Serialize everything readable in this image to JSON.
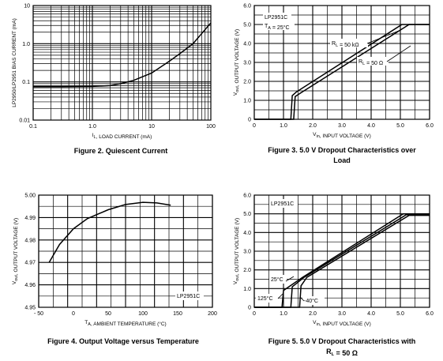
{
  "chart_data": [
    {
      "type": "line",
      "figure": "Figure 2",
      "caption": [
        "Figure 2. Quiescent Current"
      ],
      "xlabel": "I_L, LOAD CURRENT (mA)",
      "ylabel": "LP2950/LP2951 BIAS CURRENT (mA)",
      "xscale": "log",
      "yscale": "log",
      "xlim": [
        0.1,
        100
      ],
      "ylim": [
        0.01,
        10
      ],
      "xticks": [
        "0.1",
        "1.0",
        "10",
        "100"
      ],
      "yticks": [
        "10",
        "1.0",
        "0.1",
        "0.01"
      ],
      "grid": true,
      "series": [
        {
          "x": [
            0.1,
            0.3,
            1,
            2,
            3,
            5,
            10,
            20,
            30,
            50,
            100
          ],
          "y": [
            0.075,
            0.075,
            0.076,
            0.08,
            0.09,
            0.11,
            0.17,
            0.35,
            0.55,
            1.0,
            3.5
          ]
        }
      ]
    },
    {
      "type": "line",
      "figure": "Figure 3",
      "caption": [
        "Figure 3. 5.0 V Dropout Characteristics over",
        "Load"
      ],
      "xlabel": "V_in, INPUT VOLTAGE (V)",
      "ylabel": "V_out, OUTPUT VOLTAGE (V)",
      "xlim": [
        0,
        6.0
      ],
      "ylim": [
        0,
        6.0
      ],
      "xticks": [
        "0",
        "1.0",
        "2.0",
        "3.0",
        "4.0",
        "5.0",
        "6.0"
      ],
      "yticks": [
        "6.0",
        "5.0",
        "4.0",
        "3.0",
        "2.0",
        "1.0",
        "0"
      ],
      "grid": true,
      "annotations": [
        "LP2951C",
        "T_A = 25°C",
        "R_L = 50 kΩ",
        "R_L = 50 Ω"
      ],
      "series": [
        {
          "name": "R_L = 50 kΩ",
          "x": [
            0,
            1.25,
            1.3,
            1.45,
            5.05,
            6.0
          ],
          "y": [
            0,
            0,
            1.25,
            1.45,
            5.0,
            5.0
          ]
        },
        {
          "name": "R_L = 50 Ω",
          "x": [
            0,
            1.35,
            1.4,
            1.6,
            5.3,
            6.0
          ],
          "y": [
            0,
            0,
            1.2,
            1.4,
            5.0,
            5.0
          ]
        }
      ]
    },
    {
      "type": "line",
      "figure": "Figure 4",
      "caption": [
        "Figure 4. Output Voltage versus Temperature"
      ],
      "xlabel": "T_A, AMBIENT TEMPERATURE (°C)",
      "ylabel": "V_out, OUTPUT VOLTAGE (V)",
      "xlim": [
        -50,
        200
      ],
      "ylim": [
        4.95,
        5.0
      ],
      "xticks": [
        "- 50",
        "0",
        "50",
        "100",
        "150",
        "200"
      ],
      "yticks": [
        "5.00",
        "4.99",
        "4.98",
        "4.97",
        "4.96",
        "4.95"
      ],
      "grid": true,
      "annotations": [
        "LP2951C"
      ],
      "series": [
        {
          "x": [
            -35,
            -20,
            0,
            20,
            50,
            75,
            100,
            120,
            140
          ],
          "y": [
            4.97,
            4.978,
            4.985,
            4.9895,
            4.9935,
            4.9958,
            4.9968,
            4.9965,
            4.9955
          ]
        }
      ]
    },
    {
      "type": "line",
      "figure": "Figure 5",
      "caption": [
        "Figure 5. 5.0 V Dropout Characteristics with",
        "R_L = 50 Ω"
      ],
      "xlabel": "V_in, INPUT VOLTAGE (V)",
      "ylabel": "V_out, OUTPUT VOLTAGE (V)",
      "xlim": [
        0,
        6.0
      ],
      "ylim": [
        0,
        6.0
      ],
      "xticks": [
        "0",
        "1.0",
        "2.0",
        "3.0",
        "4.0",
        "5.0",
        "6.0"
      ],
      "yticks": [
        "6.0",
        "5.0",
        "4.0",
        "3.0",
        "2.0",
        "1.0",
        "0"
      ],
      "grid": true,
      "annotations": [
        "LP2951C",
        "25°C",
        "125°C",
        "-40°C"
      ],
      "series": [
        {
          "name": "125°C",
          "x": [
            0,
            0.95,
            1.0,
            1.65,
            5.1,
            6.0
          ],
          "y": [
            0,
            0,
            0.9,
            1.6,
            5.0,
            5.0
          ]
        },
        {
          "name": "25°C",
          "x": [
            0,
            1.25,
            1.3,
            1.72,
            5.2,
            6.0
          ],
          "y": [
            0,
            0,
            1.1,
            1.62,
            4.95,
            4.95
          ]
        },
        {
          "name": "-40°C",
          "x": [
            0,
            1.55,
            1.6,
            1.8,
            5.3,
            6.0
          ],
          "y": [
            0,
            0,
            1.15,
            1.6,
            4.92,
            4.92
          ]
        }
      ]
    }
  ]
}
